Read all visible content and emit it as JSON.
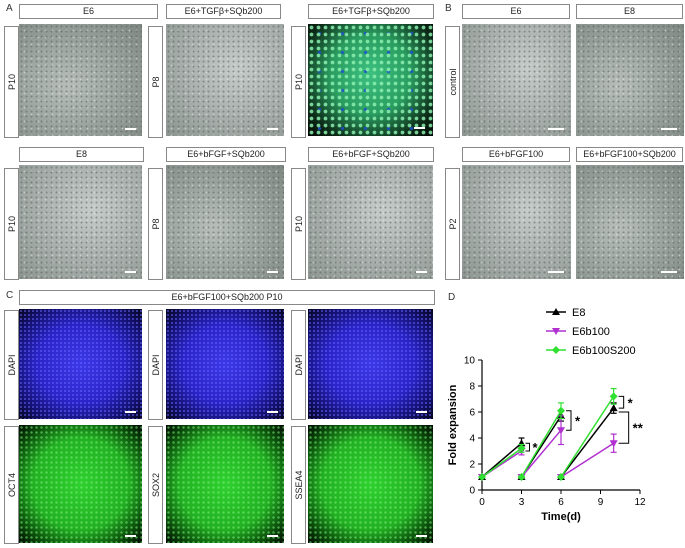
{
  "panels": {
    "A": {
      "label": "A",
      "top_row": [
        {
          "condition": "E6",
          "passage": "P10",
          "image": "brightfield-colony"
        },
        {
          "condition": "E6+TGFβ+SQb200",
          "passage": "P8",
          "image": "brightfield-colony"
        },
        {
          "condition": "E6+TGFβ+SQb200",
          "passage": "P10",
          "image": "fluorescence-colony"
        }
      ],
      "bottom_row": [
        {
          "condition": "E8",
          "passage": "P10",
          "image": "brightfield-colony"
        },
        {
          "condition": "E6+bFGF+SQb200",
          "passage": "P8",
          "image": "brightfield-colony"
        },
        {
          "condition": "E6+bFGF+SQb200",
          "passage": "P10",
          "image": "brightfield-colony"
        }
      ]
    },
    "B": {
      "label": "B",
      "columns_top": [
        "E6",
        "E8"
      ],
      "columns_bottom": [
        "E6+bFGF100",
        "E6+bFGF100+SQb200"
      ],
      "rows": [
        "control",
        "P2"
      ]
    },
    "C": {
      "label": "C",
      "title": "E6+bFGF100+SQb200  P10",
      "top_row": [
        "DAPI",
        "DAPI",
        "DAPI"
      ],
      "bottom_row": [
        "OCT4",
        "SOX2",
        "SSEA4"
      ]
    },
    "D": {
      "label": "D"
    }
  },
  "chart_data": {
    "type": "line",
    "title": "",
    "xlabel": "Time(d)",
    "ylabel": "Fold expansion",
    "xlim": [
      0,
      12
    ],
    "ylim": [
      0,
      10
    ],
    "xticks": [
      0,
      3,
      6,
      9,
      12
    ],
    "yticks": [
      0,
      2,
      4,
      6,
      8,
      10
    ],
    "legend_position": "top-right",
    "series": [
      {
        "name": "E8",
        "color": "#000000",
        "marker": "triangle-up",
        "segments": [
          [
            [
              0,
              1
            ],
            [
              3,
              3.6
            ]
          ],
          [
            [
              3,
              1
            ],
            [
              6,
              5.7
            ]
          ],
          [
            [
              6,
              1
            ],
            [
              10,
              6.3
            ]
          ]
        ],
        "errors": [
          0,
          0.4,
          0,
          0.4,
          0,
          0.4
        ]
      },
      {
        "name": "E6b100",
        "color": "#b030d0",
        "marker": "triangle-down",
        "segments": [
          [
            [
              0,
              1
            ],
            [
              3,
              3
            ]
          ],
          [
            [
              3,
              1
            ],
            [
              6,
              4.6
            ]
          ],
          [
            [
              6,
              1
            ],
            [
              10,
              3.6
            ]
          ]
        ],
        "errors": [
          0,
          0.3,
          0,
          1.1,
          0,
          0.7
        ]
      },
      {
        "name": "E6b100S200",
        "color": "#30e030",
        "marker": "diamond",
        "segments": [
          [
            [
              0,
              1
            ],
            [
              3,
              3.2
            ]
          ],
          [
            [
              3,
              1
            ],
            [
              6,
              6.1
            ]
          ],
          [
            [
              6,
              1
            ],
            [
              10,
              7.2
            ]
          ]
        ],
        "errors": [
          0,
          0.3,
          0,
          0.6,
          0,
          0.6
        ]
      }
    ],
    "significance": [
      {
        "label": "*",
        "x": 3
      },
      {
        "label": "*",
        "x": 6
      },
      {
        "label": "*",
        "x": 10,
        "bracket": "E8-E6b100S200"
      },
      {
        "label": "**",
        "x": 10,
        "bracket": "E6b100-E6b100S200"
      }
    ]
  }
}
